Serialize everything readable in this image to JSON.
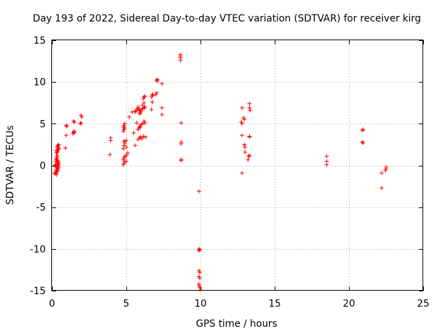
{
  "chart_data": {
    "type": "scatter",
    "title": "Day 193 of 2022, Sidereal Day-to-day VTEC variation (SDTVAR) for receiver kirg",
    "xlabel": "GPS time / hours",
    "ylabel": "SDTVAR / TECUs",
    "xlim": [
      0,
      25
    ],
    "ylim": [
      -15,
      15
    ],
    "xticks": [
      0,
      5,
      10,
      15,
      20,
      25
    ],
    "yticks": [
      -15,
      -10,
      -5,
      0,
      5,
      10,
      15
    ],
    "xtick_labels": [
      "0",
      "5",
      "10",
      "15",
      "20",
      "25"
    ],
    "ytick_labels": [
      "-15",
      "-10",
      "-5",
      "0",
      "5",
      "10",
      "15"
    ],
    "grid": true,
    "marker": "+",
    "color": "#ff0000",
    "series": [
      {
        "name": "kirg",
        "x": [
          0.2,
          0.2,
          0.25,
          0.3,
          0.3,
          0.35,
          0.35,
          0.4,
          0.2,
          0.25,
          0.3,
          0.35,
          0.4,
          0.25,
          0.3,
          0.35,
          0.4,
          0.45,
          0.3,
          0.35,
          0.3,
          0.35,
          0.4,
          0.45,
          0.35,
          0.4,
          0.45,
          0.3,
          0.35,
          0.4,
          0.45,
          0.3,
          0.35,
          0.4,
          0.45,
          0.4,
          0.45,
          0.9,
          0.95,
          1.0,
          0.95,
          1.4,
          1.45,
          1.5,
          1.45,
          1.5,
          1.5,
          1.9,
          1.95,
          2.0,
          1.95,
          3.9,
          3.95,
          3.95,
          4.8,
          4.85,
          4.9,
          4.8,
          4.85,
          4.9,
          4.8,
          4.85,
          4.9,
          4.85,
          4.8,
          4.85,
          4.9,
          4.8,
          4.85,
          4.9,
          5.0,
          5.0,
          5.0,
          5.0,
          5.1,
          5.2,
          5.4,
          5.5,
          5.6,
          5.6,
          5.7,
          5.75,
          5.8,
          5.85,
          5.9,
          5.95,
          6.0,
          5.8,
          5.85,
          5.9,
          5.95,
          6.0,
          6.1,
          6.2,
          5.8,
          5.9,
          5.95,
          6.05,
          6.15,
          6.25,
          6.1,
          6.2,
          6.25,
          5.9,
          6.0,
          6.1,
          6.2,
          6.15,
          6.2,
          6.25,
          5.7,
          5.6,
          6.3,
          6.7,
          6.75,
          6.8,
          6.7,
          6.75,
          7.0,
          7.05,
          7.05,
          7.1,
          7.1,
          7.4,
          7.4,
          7.4,
          8.65,
          8.65,
          8.65,
          8.65,
          8.7,
          8.7,
          8.7,
          8.7,
          8.7,
          9.9,
          9.9,
          9.9,
          9.95,
          9.9,
          9.95,
          9.9,
          9.95,
          9.9,
          9.9,
          9.95,
          10.0,
          12.8,
          12.8,
          12.8,
          12.75,
          12.8,
          12.9,
          12.95,
          12.95,
          13.0,
          13.0,
          13.2,
          13.25,
          13.3,
          13.3,
          13.3,
          13.35,
          13.3,
          13.3,
          18.5,
          18.5,
          18.5,
          20.9,
          20.95,
          20.9,
          20.95,
          22.2,
          22.2,
          22.45,
          22.5,
          22.5
        ],
        "y": [
          -1.0,
          -0.9,
          -0.7,
          -1.1,
          -0.5,
          -0.8,
          -0.3,
          -0.6,
          0.0,
          0.1,
          -0.2,
          0.2,
          0.4,
          0.5,
          0.7,
          0.3,
          0.0,
          0.1,
          1.0,
          1.2,
          1.5,
          1.7,
          1.9,
          2.0,
          2.2,
          2.4,
          2.1,
          1.8,
          1.6,
          2.3,
          2.5,
          0.8,
          1.0,
          -0.4,
          -0.2,
          0.6,
          0.3,
          2.1,
          3.6,
          4.7,
          4.8,
          3.8,
          4.0,
          5.2,
          5.3,
          3.9,
          4.1,
          5.0,
          5.1,
          5.8,
          6.0,
          1.3,
          3.0,
          3.3,
          0.1,
          0.3,
          0.5,
          0.7,
          0.9,
          1.1,
          2.0,
          2.4,
          2.7,
          2.9,
          4.1,
          4.3,
          4.5,
          4.6,
          4.8,
          5.0,
          0.5,
          1.2,
          2.2,
          3.0,
          1.5,
          5.8,
          6.4,
          3.9,
          6.4,
          6.5,
          6.6,
          6.8,
          7.0,
          6.7,
          6.2,
          6.3,
          6.5,
          4.3,
          4.5,
          4.7,
          4.6,
          4.9,
          5.0,
          5.3,
          3.1,
          3.3,
          3.4,
          3.2,
          3.5,
          5.1,
          7.2,
          7.5,
          7.0,
          6.6,
          6.7,
          6.8,
          6.9,
          8.0,
          8.2,
          8.3,
          5.1,
          2.4,
          3.4,
          6.7,
          7.6,
          8.4,
          8.2,
          8.5,
          8.5,
          8.7,
          10.2,
          10.3,
          10.1,
          9.8,
          6.1,
          6.9,
          12.6,
          12.9,
          13.1,
          13.3,
          5.1,
          2.8,
          2.6,
          0.7,
          0.6,
          -3.1,
          -10.0,
          -10.2,
          -10.1,
          -12.6,
          -12.8,
          -13.3,
          -13.5,
          -14.2,
          -14.4,
          -14.6,
          -14.9,
          -0.9,
          3.6,
          5.0,
          5.2,
          6.9,
          5.7,
          5.5,
          2.5,
          2.2,
          1.6,
          0.7,
          1.1,
          1.2,
          3.5,
          3.4,
          6.6,
          6.9,
          7.4,
          1.1,
          0.5,
          0.1,
          4.2,
          4.3,
          2.8,
          2.7,
          -0.9,
          -2.7,
          -0.6,
          -0.4,
          -0.2
        ]
      }
    ]
  }
}
